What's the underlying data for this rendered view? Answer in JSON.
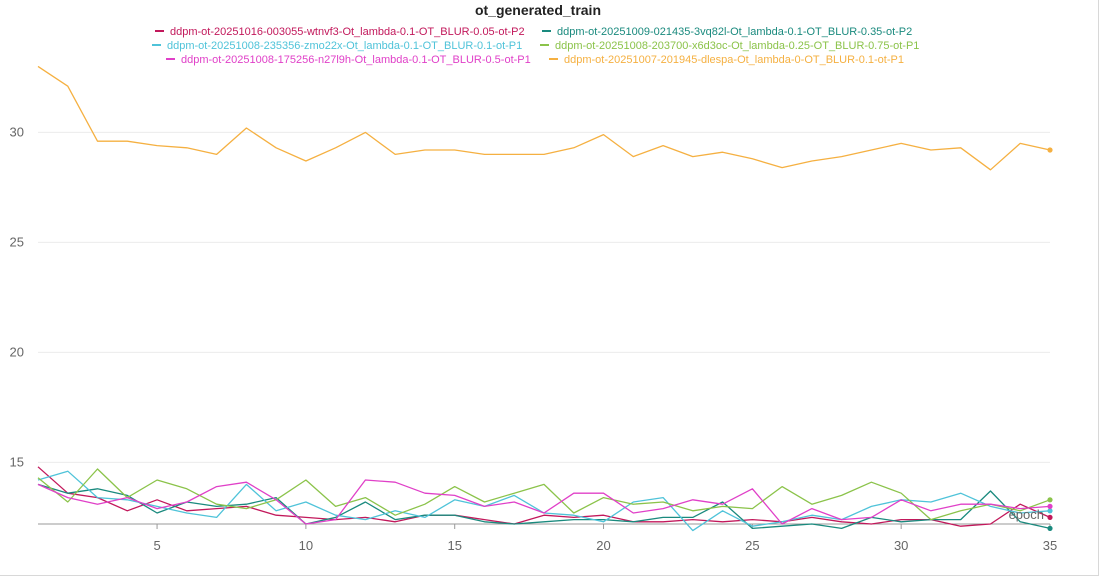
{
  "chart_data": {
    "type": "line",
    "title": "ot_generated_train",
    "xlabel": "epoch",
    "ylabel": "",
    "xlim": [
      1,
      35
    ],
    "ylim": [
      12.2,
      33.2
    ],
    "xticks": [
      5,
      10,
      15,
      20,
      25,
      30,
      35
    ],
    "yticks": [
      15,
      20,
      25,
      30
    ],
    "grid": true,
    "legend_position": "top",
    "x": [
      1,
      2,
      3,
      4,
      5,
      6,
      7,
      8,
      9,
      10,
      11,
      12,
      13,
      14,
      15,
      16,
      17,
      18,
      19,
      20,
      21,
      22,
      23,
      24,
      25,
      26,
      27,
      28,
      29,
      30,
      31,
      32,
      33,
      34,
      35
    ],
    "series": [
      {
        "name": "ddpm-ot-20251016-003055-wtnvf3-Ot_lambda-0.1-OT_BLUR-0.05-ot-P2",
        "color": "#c2185b",
        "values": [
          14.8,
          13.6,
          13.4,
          12.8,
          13.3,
          12.8,
          12.9,
          13.0,
          12.6,
          12.5,
          12.4,
          12.5,
          12.3,
          12.6,
          12.6,
          12.4,
          12.2,
          12.6,
          12.5,
          12.6,
          12.3,
          12.3,
          12.4,
          12.3,
          12.4,
          12.3,
          12.5,
          12.3,
          12.2,
          12.4,
          12.4,
          12.1,
          12.2,
          13.1,
          12.5
        ]
      },
      {
        "name": "ddpm-ot-20251009-021435-3vq82l-Ot_lambda-0.1-OT_BLUR-0.35-ot-P2",
        "color": "#1a8a7e",
        "values": [
          14.0,
          13.6,
          13.8,
          13.5,
          12.7,
          13.2,
          13.0,
          13.1,
          13.4,
          12.2,
          12.5,
          13.2,
          12.4,
          12.6,
          12.6,
          12.3,
          12.2,
          12.3,
          12.4,
          12.4,
          12.3,
          12.5,
          12.5,
          13.2,
          12.0,
          12.1,
          12.2,
          12.0,
          12.5,
          12.3,
          12.4,
          12.4,
          13.7,
          12.3,
          12.0
        ]
      },
      {
        "name": "ddpm-ot-20251008-235356-zmo22x-Ot_lambda-0.1-OT_BLUR-0.1-ot-P1",
        "color": "#4fc3d9",
        "values": [
          14.2,
          14.6,
          13.4,
          13.3,
          13.0,
          12.7,
          12.5,
          14.0,
          12.8,
          13.2,
          12.6,
          12.4,
          12.8,
          12.5,
          13.3,
          13.0,
          13.5,
          12.7,
          12.6,
          12.3,
          13.2,
          13.4,
          11.9,
          12.8,
          12.1,
          12.3,
          12.6,
          12.4,
          13.0,
          13.3,
          13.2,
          13.6,
          13.0,
          12.7,
          12.8
        ]
      },
      {
        "name": "ddpm-ot-20251008-203700-x6d3oc-Ot_lambda-0.25-OT_BLUR-0.75-ot-P1",
        "color": "#8bc34a",
        "values": [
          14.3,
          13.2,
          14.7,
          13.4,
          14.2,
          13.8,
          13.1,
          12.9,
          13.3,
          14.2,
          13.0,
          13.4,
          12.6,
          13.1,
          13.9,
          13.2,
          13.6,
          14.0,
          12.7,
          13.4,
          13.1,
          13.2,
          12.8,
          13.0,
          12.9,
          13.9,
          13.1,
          13.5,
          14.1,
          13.6,
          12.4,
          12.8,
          13.1,
          12.8,
          13.3
        ]
      },
      {
        "name": "ddpm-ot-20251008-175256-n27l9h-Ot_lambda-0.1-OT_BLUR-0.5-ot-P1",
        "color": "#e040c8",
        "values": [
          14.0,
          13.4,
          13.1,
          13.4,
          12.9,
          13.2,
          13.9,
          14.1,
          13.3,
          12.2,
          12.4,
          14.2,
          14.1,
          13.6,
          13.5,
          13.0,
          13.2,
          12.7,
          13.6,
          13.6,
          12.7,
          12.9,
          13.3,
          13.1,
          13.8,
          12.2,
          12.9,
          12.4,
          12.5,
          13.3,
          12.8,
          13.1,
          13.1,
          12.9,
          13.0
        ]
      },
      {
        "name": "ddpm-ot-20251007-201945-dlespa-Ot_lambda-0-OT_BLUR-0.1-ot-P1",
        "color": "#f5b041",
        "values": [
          33.0,
          32.1,
          29.6,
          29.6,
          29.4,
          29.3,
          29.0,
          30.2,
          29.3,
          28.7,
          29.3,
          30.0,
          29.0,
          29.2,
          29.2,
          29.0,
          29.0,
          29.0,
          29.3,
          29.9,
          28.9,
          29.4,
          28.9,
          29.1,
          28.8,
          28.4,
          28.7,
          28.9,
          29.2,
          29.5,
          29.2,
          29.3,
          28.3,
          29.5,
          29.2
        ]
      }
    ]
  }
}
